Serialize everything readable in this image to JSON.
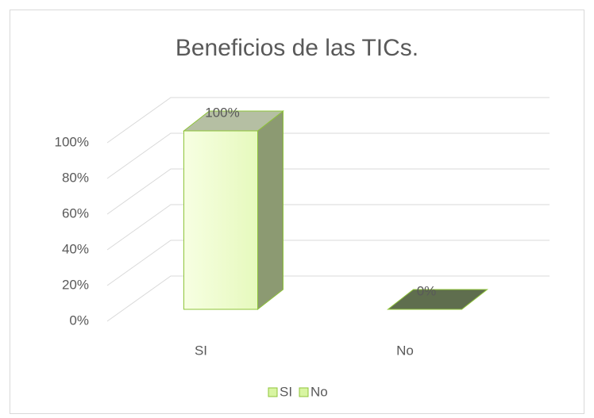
{
  "chart_data": {
    "type": "bar3d",
    "title": "Beneficios de las TICs.",
    "categories": [
      "SI",
      "No"
    ],
    "series": [
      {
        "name": "SI",
        "color": "#d8f5a2",
        "values": [
          100,
          null
        ],
        "value_labels": [
          "100%",
          null
        ]
      },
      {
        "name": "No",
        "color": "#d8f5a2",
        "values": [
          null,
          0
        ],
        "value_labels": [
          null,
          "0%"
        ]
      }
    ],
    "ylim": [
      0,
      100
    ],
    "yticks": [
      {
        "value": 0,
        "label": "0%"
      },
      {
        "value": 20,
        "label": "20%"
      },
      {
        "value": 40,
        "label": "40%"
      },
      {
        "value": 60,
        "label": "60%"
      },
      {
        "value": 80,
        "label": "80%"
      },
      {
        "value": 100,
        "label": "100%"
      }
    ],
    "grid": true,
    "legend": "bottom"
  }
}
